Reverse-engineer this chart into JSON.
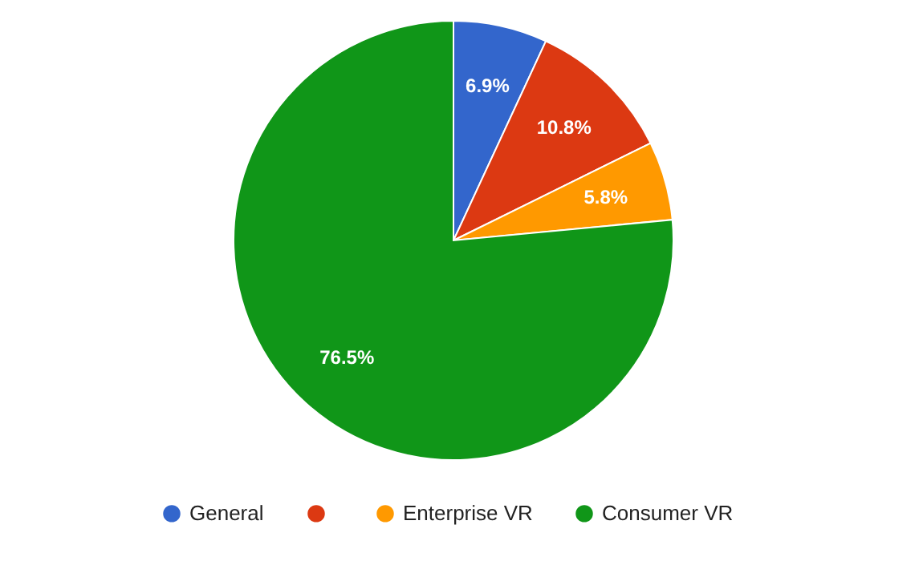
{
  "chart_data": {
    "type": "pie",
    "categories": [
      "General",
      null,
      "Enterprise VR",
      "Consumer VR"
    ],
    "values": [
      6.9,
      10.8,
      5.8,
      76.5
    ],
    "colors": [
      "#3366cc",
      "#dc3912",
      "#ff9900",
      "#109618"
    ],
    "value_labels": [
      "6.9%",
      "10.8%",
      "5.8%",
      "76.5%"
    ],
    "legend": "bottom"
  }
}
